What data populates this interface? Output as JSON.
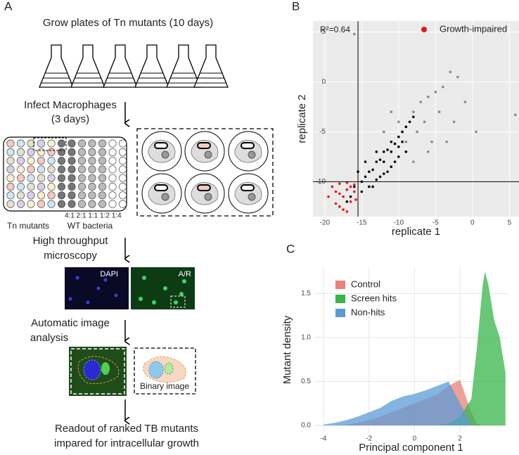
{
  "panel_a": {
    "label": "A",
    "step1": "Grow plates of Tn mutants (10 days)",
    "step2_line1": "Infect Macrophages",
    "step2_line2": "(3 days)",
    "ratios": "4:1 2:1 1:1 1:2 1:4",
    "plate_left": "Tn mutants",
    "plate_right": "WT bacteria",
    "step3_line1": "High throughput",
    "step3_line2": "microscopy",
    "image1": "DAPI",
    "image2": "A/R",
    "step4_line1": "Automatic image",
    "step4_line2": "analysis",
    "binary": "Binary image",
    "readout_line1": "Readout of ranked TB mutants",
    "readout_line2": "impared for intracellular growth"
  },
  "chart_data": [
    {
      "type": "scatter",
      "panel": "B",
      "annotation": "R²=0.64",
      "x_label": "replicate 1",
      "y_label": "replicate 2",
      "xlim": [
        -21.6,
        6.3
      ],
      "ylim": [
        -13.5,
        6.1
      ],
      "xticks": [
        -20,
        -15,
        -10,
        -5,
        0,
        5
      ],
      "yticks": [
        -10,
        -5,
        0,
        5
      ],
      "grid": true,
      "reference_lines": {
        "x": -15.5,
        "y": -10
      },
      "legend": "top-right",
      "series": [
        {
          "color": "#888888",
          "x": [
            -8,
            -7,
            -6,
            -5,
            -4,
            -3,
            -2,
            -1,
            -9,
            -7.5,
            -6.5,
            -5.5,
            -4.5,
            -12,
            -10,
            -11,
            -3.5,
            -2.5,
            0.5,
            5.8,
            -16,
            -8,
            -6
          ],
          "values": [
            -3,
            -2,
            -1.5,
            -1,
            -0.5,
            1,
            0.5,
            -2,
            -6,
            -5,
            -4,
            -6,
            -3,
            -5,
            -4,
            -3,
            -6,
            -4,
            -5,
            -3.3,
            4.8,
            -8,
            -7
          ]
        },
        {
          "color": "#000000",
          "x": [
            -16,
            -15,
            -14.5,
            -14,
            -13.5,
            -13,
            -12.5,
            -12,
            -11.5,
            -11,
            -10.5,
            -10,
            -9.5,
            -9,
            -8.5,
            -8,
            -15,
            -14,
            -13,
            -12,
            -11,
            -10,
            -9,
            -16.5,
            -17,
            -13.5,
            -12.5,
            -11.5,
            -10.5,
            -14.5,
            -15.5,
            -12,
            -11,
            -10,
            -13,
            -9.5
          ],
          "values": [
            -10.5,
            -10,
            -9.5,
            -9,
            -8.8,
            -8,
            -7.8,
            -7,
            -6.8,
            -6,
            -6.2,
            -5.5,
            -5,
            -4.5,
            -4,
            -3.5,
            -11,
            -10.5,
            -9.8,
            -9.2,
            -8.5,
            -7.5,
            -7,
            -11.5,
            -12,
            -10.5,
            -9.5,
            -9,
            -8,
            -8,
            -9,
            -8,
            -7,
            -6.5,
            -7,
            -6
          ]
        },
        {
          "name": "Growth-impaired",
          "color": "#e8141e",
          "x": [
            -19,
            -18.5,
            -18,
            -17.5,
            -17,
            -16.5,
            -16,
            -18,
            -17,
            -16,
            -19.5,
            -18.5,
            -17.5,
            -16.5,
            -15.8,
            -18,
            -17
          ],
          "values": [
            -10.5,
            -11,
            -10.2,
            -11.5,
            -10.8,
            -12,
            -11,
            -12.5,
            -13,
            -10.3,
            -11.5,
            -12.2,
            -12.8,
            -10.5,
            -11.8,
            -11.2,
            -10.1
          ]
        }
      ]
    },
    {
      "type": "area",
      "panel": "C",
      "x_label": "Principal component 1",
      "y_label": "Mutant density",
      "xlim": [
        -4.4,
        4.1
      ],
      "ylim": [
        -0.08,
        1.8
      ],
      "xticks": [
        -4,
        -2,
        0,
        2
      ],
      "yticks": [
        {
          "value": 0,
          "label": "0.0"
        },
        {
          "value": 0.5,
          "label": "0.5"
        },
        {
          "value": 1,
          "label": "1.0"
        },
        {
          "value": 1.5,
          "label": "1.5"
        }
      ],
      "grid": true,
      "legend": "top-left",
      "x": [
        -4,
        -3.5,
        -3,
        -2.5,
        -2,
        -1.5,
        -1,
        -0.5,
        0,
        0.5,
        1,
        1.5,
        2,
        2.5,
        2.75,
        3,
        3.1,
        3.25,
        3.5,
        3.75,
        4
      ],
      "series": [
        {
          "name": "Control",
          "color": "#e8827a",
          "values": [
            0,
            0,
            0.01,
            0.03,
            0.06,
            0.1,
            0.15,
            0.2,
            0.25,
            0.3,
            0.35,
            0.45,
            0.52,
            0.15,
            0.02,
            0,
            0,
            0,
            0,
            0,
            0
          ]
        },
        {
          "name": "Screen hits",
          "color": "#35b54a",
          "values": [
            0,
            0,
            0,
            0,
            0,
            0,
            0,
            0,
            0,
            0,
            0,
            0.02,
            0.1,
            0.3,
            0.9,
            1.6,
            1.75,
            1.6,
            1.2,
            1,
            0.6
          ]
        },
        {
          "name": "Non-hits",
          "color": "#5b9bd5",
          "values": [
            0.01,
            0.03,
            0.06,
            0.1,
            0.15,
            0.2,
            0.28,
            0.33,
            0.36,
            0.4,
            0.45,
            0.5,
            0.25,
            0.02,
            0,
            0,
            0,
            0,
            0,
            0,
            0
          ]
        }
      ]
    }
  ]
}
